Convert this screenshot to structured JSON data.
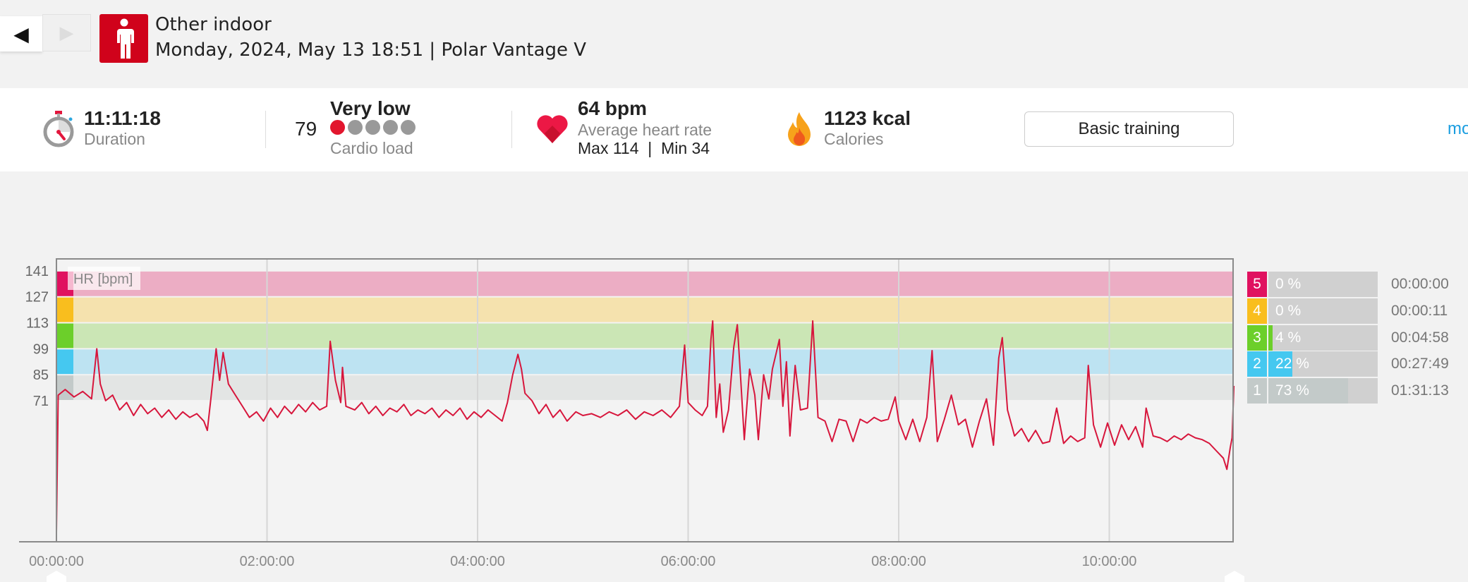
{
  "nav": {
    "prev_icon": "triangle-left-icon",
    "next_icon": "triangle-right-icon",
    "prev_glyph": "◀",
    "next_glyph": "▶"
  },
  "header": {
    "sport": "Other indoor",
    "sport_icon": "person-standing-icon",
    "subtitle": "Monday, 2024, May 13 18:51 | Polar Vantage V"
  },
  "stats": {
    "duration": {
      "value": "11:11:18",
      "label": "Duration",
      "icon": "stopwatch-icon"
    },
    "cardio": {
      "value": "79",
      "level": "Very low",
      "label": "Cardio load",
      "level_filled": 1,
      "level_total": 5
    },
    "heart": {
      "value": "64 bpm",
      "label": "Average heart rate",
      "max": "Max 114",
      "sep": "|",
      "min": "Min 34",
      "icon": "heart-icon"
    },
    "calories": {
      "value": "1123 kcal",
      "label": "Calories",
      "icon": "flame-icon"
    },
    "training_button": "Basic training",
    "more_link": "mo"
  },
  "colors": {
    "accent": "#d0021b",
    "hr_line": "#d7163c",
    "link": "#1a9de0"
  },
  "zones": [
    {
      "zone": "5",
      "pct": 0,
      "pct_label": "0 %",
      "time": "00:00:00",
      "color": "#e0115f",
      "band": "#ecadc4",
      "from": 127,
      "to": 141
    },
    {
      "zone": "4",
      "pct": 0,
      "pct_label": "0 %",
      "time": "00:00:11",
      "color": "#f9be1e",
      "band": "#f5e2ae",
      "from": 113,
      "to": 127
    },
    {
      "zone": "3",
      "pct": 4,
      "pct_label": "4 %",
      "time": "00:04:58",
      "color": "#6ccf2a",
      "band": "#cbe6b5",
      "from": 99,
      "to": 113
    },
    {
      "zone": "2",
      "pct": 22,
      "pct_label": "22 %",
      "time": "00:27:49",
      "color": "#45c8f0",
      "band": "#bde3f2",
      "from": 85,
      "to": 99
    },
    {
      "zone": "1",
      "pct": 73,
      "pct_label": "73 %",
      "time": "01:31:13",
      "color": "#c3cac9",
      "band": "#e3e5e4",
      "from": 71,
      "to": 85
    }
  ],
  "chart_data": {
    "type": "line",
    "ylabel": "HR [bpm]",
    "y_ticks": [
      "141",
      "127",
      "113",
      "99",
      "85",
      "71"
    ],
    "x_ticks": [
      "00:00:00",
      "02:00:00",
      "04:00:00",
      "06:00:00",
      "08:00:00",
      "10:00:00"
    ],
    "xlim": [
      "00:00:00",
      "11:11:18"
    ],
    "ylim": [
      -5,
      147.5
    ],
    "grid": "vertical",
    "series": [
      {
        "points": [
          [
            "0:00",
            0
          ],
          [
            "0:01",
            74
          ],
          [
            "0:05",
            77
          ],
          [
            "0:10",
            73
          ],
          [
            "0:15",
            76
          ],
          [
            "0:20",
            72
          ],
          [
            "0:23",
            99
          ],
          [
            "0:25",
            80
          ],
          [
            "0:28",
            71
          ],
          [
            "0:32",
            74
          ],
          [
            "0:36",
            66
          ],
          [
            "0:40",
            70
          ],
          [
            "0:44",
            63
          ],
          [
            "0:48",
            69
          ],
          [
            "0:52",
            64
          ],
          [
            "0:56",
            67
          ],
          [
            "1:00",
            62
          ],
          [
            "1:04",
            66
          ],
          [
            "1:08",
            61
          ],
          [
            "1:12",
            65
          ],
          [
            "1:16",
            62
          ],
          [
            "1:20",
            64
          ],
          [
            "1:24",
            60
          ],
          [
            "1:26",
            55
          ],
          [
            "1:28",
            72
          ],
          [
            "1:31",
            99
          ],
          [
            "1:33",
            82
          ],
          [
            "1:35",
            97
          ],
          [
            "1:38",
            80
          ],
          [
            "1:42",
            74
          ],
          [
            "1:46",
            68
          ],
          [
            "1:50",
            62
          ],
          [
            "1:54",
            65
          ],
          [
            "1:58",
            60
          ],
          [
            "2:02",
            67
          ],
          [
            "2:06",
            62
          ],
          [
            "2:10",
            68
          ],
          [
            "2:14",
            64
          ],
          [
            "2:18",
            69
          ],
          [
            "2:22",
            65
          ],
          [
            "2:26",
            70
          ],
          [
            "2:30",
            66
          ],
          [
            "2:34",
            68
          ],
          [
            "2:36",
            103
          ],
          [
            "2:39",
            82
          ],
          [
            "2:42",
            70
          ],
          [
            "2:43",
            89
          ],
          [
            "2:45",
            68
          ],
          [
            "2:50",
            66
          ],
          [
            "2:54",
            70
          ],
          [
            "2:58",
            64
          ],
          [
            "3:02",
            68
          ],
          [
            "3:06",
            63
          ],
          [
            "3:10",
            67
          ],
          [
            "3:14",
            65
          ],
          [
            "3:18",
            69
          ],
          [
            "3:22",
            63
          ],
          [
            "3:26",
            66
          ],
          [
            "3:30",
            64
          ],
          [
            "3:34",
            67
          ],
          [
            "3:38",
            62
          ],
          [
            "3:42",
            66
          ],
          [
            "3:46",
            63
          ],
          [
            "3:50",
            67
          ],
          [
            "3:54",
            61
          ],
          [
            "3:58",
            65
          ],
          [
            "4:02",
            62
          ],
          [
            "4:06",
            66
          ],
          [
            "4:10",
            63
          ],
          [
            "4:14",
            60
          ],
          [
            "4:17",
            70
          ],
          [
            "4:20",
            85
          ],
          [
            "4:23",
            96
          ],
          [
            "4:25",
            88
          ],
          [
            "4:27",
            75
          ],
          [
            "4:31",
            71
          ],
          [
            "4:35",
            64
          ],
          [
            "4:39",
            69
          ],
          [
            "4:43",
            62
          ],
          [
            "4:47",
            66
          ],
          [
            "4:51",
            60
          ],
          [
            "4:56",
            65
          ],
          [
            "5:00",
            63
          ],
          [
            "5:05",
            64
          ],
          [
            "5:10",
            62
          ],
          [
            "5:15",
            65
          ],
          [
            "5:20",
            63
          ],
          [
            "5:25",
            66
          ],
          [
            "5:30",
            61
          ],
          [
            "5:35",
            65
          ],
          [
            "5:40",
            63
          ],
          [
            "5:45",
            66
          ],
          [
            "5:50",
            62
          ],
          [
            "5:55",
            68
          ],
          [
            "5:58",
            101
          ],
          [
            "6:00",
            70
          ],
          [
            "6:04",
            66
          ],
          [
            "6:08",
            63
          ],
          [
            "6:11",
            68
          ],
          [
            "6:13",
            104
          ],
          [
            "6:14",
            114
          ],
          [
            "6:16",
            62
          ],
          [
            "6:18",
            80
          ],
          [
            "6:20",
            54
          ],
          [
            "6:23",
            66
          ],
          [
            "6:26",
            100
          ],
          [
            "6:28",
            112
          ],
          [
            "6:30",
            82
          ],
          [
            "6:32",
            50
          ],
          [
            "6:35",
            88
          ],
          [
            "6:38",
            74
          ],
          [
            "6:40",
            50
          ],
          [
            "6:43",
            85
          ],
          [
            "6:46",
            72
          ],
          [
            "6:48",
            88
          ],
          [
            "6:50",
            96
          ],
          [
            "6:52",
            104
          ],
          [
            "6:54",
            68
          ],
          [
            "6:56",
            92
          ],
          [
            "6:58",
            52
          ],
          [
            "7:01",
            90
          ],
          [
            "7:04",
            66
          ],
          [
            "7:08",
            67
          ],
          [
            "7:11",
            114
          ],
          [
            "7:14",
            62
          ],
          [
            "7:18",
            60
          ],
          [
            "7:22",
            49
          ],
          [
            "7:26",
            61
          ],
          [
            "7:30",
            60
          ],
          [
            "7:34",
            49
          ],
          [
            "7:38",
            61
          ],
          [
            "7:42",
            59
          ],
          [
            "7:46",
            62
          ],
          [
            "7:50",
            60
          ],
          [
            "7:54",
            61
          ],
          [
            "7:58",
            73
          ],
          [
            "8:00",
            60
          ],
          [
            "8:04",
            50
          ],
          [
            "8:08",
            61
          ],
          [
            "8:12",
            49
          ],
          [
            "8:16",
            62
          ],
          [
            "8:19",
            98
          ],
          [
            "8:22",
            49
          ],
          [
            "8:26",
            61
          ],
          [
            "8:30",
            74
          ],
          [
            "8:34",
            58
          ],
          [
            "8:38",
            61
          ],
          [
            "8:42",
            46
          ],
          [
            "8:46",
            60
          ],
          [
            "8:50",
            72
          ],
          [
            "8:54",
            47
          ],
          [
            "8:57",
            94
          ],
          [
            "8:59",
            105
          ],
          [
            "9:02",
            66
          ],
          [
            "9:06",
            52
          ],
          [
            "9:10",
            56
          ],
          [
            "9:14",
            49
          ],
          [
            "9:18",
            55
          ],
          [
            "9:22",
            48
          ],
          [
            "9:26",
            49
          ],
          [
            "9:30",
            67
          ],
          [
            "9:34",
            48
          ],
          [
            "9:38",
            52
          ],
          [
            "9:42",
            49
          ],
          [
            "9:46",
            51
          ],
          [
            "9:48",
            90
          ],
          [
            "9:51",
            58
          ],
          [
            "9:55",
            46
          ],
          [
            "9:59",
            59
          ],
          [
            "10:03",
            47
          ],
          [
            "10:07",
            58
          ],
          [
            "10:11",
            50
          ],
          [
            "10:15",
            57
          ],
          [
            "10:19",
            46
          ],
          [
            "10:21",
            67
          ],
          [
            "10:25",
            52
          ],
          [
            "10:29",
            51
          ],
          [
            "10:33",
            49
          ],
          [
            "10:37",
            52
          ],
          [
            "10:41",
            50
          ],
          [
            "10:45",
            53
          ],
          [
            "10:49",
            51
          ],
          [
            "10:53",
            50
          ],
          [
            "10:57",
            48
          ],
          [
            "11:01",
            44
          ],
          [
            "11:05",
            40
          ],
          [
            "11:07",
            34
          ],
          [
            "11:09",
            46
          ],
          [
            "11:10",
            51
          ],
          [
            "11:11",
            79
          ]
        ]
      }
    ]
  }
}
